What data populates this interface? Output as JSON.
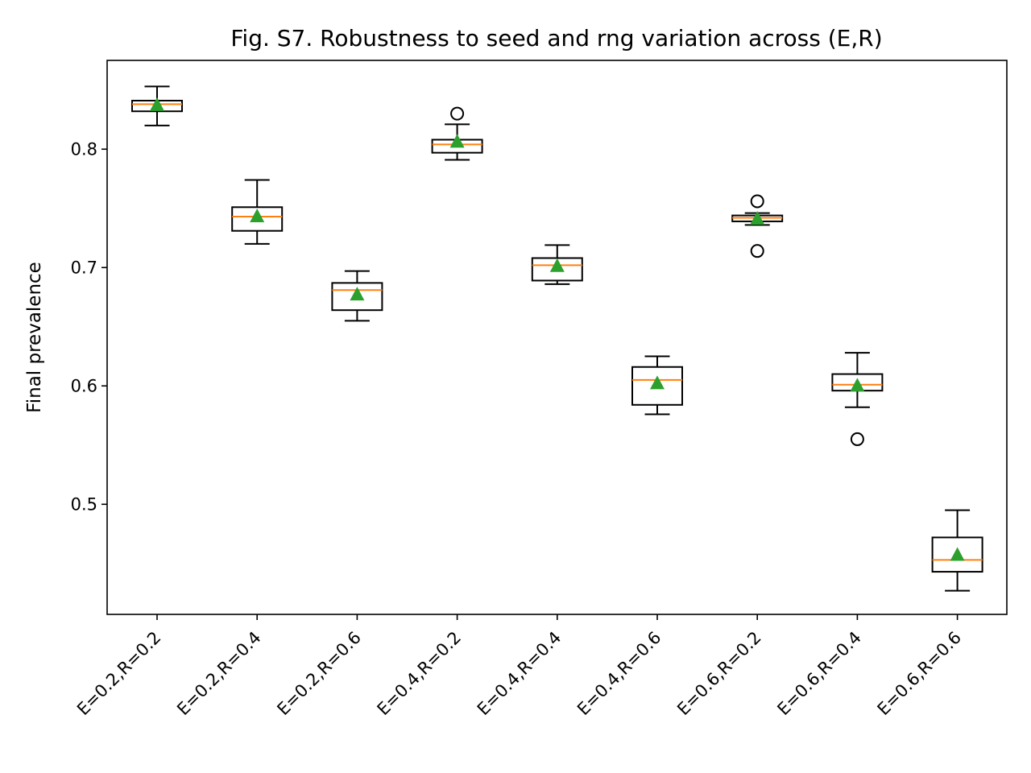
{
  "chart_data": {
    "type": "box",
    "title": "Fig. S7. Robustness to seed and rng variation across (E,R)",
    "xlabel": "",
    "ylabel": "Final prevalence",
    "ylim": [
      0.407,
      0.875
    ],
    "yticks": [
      0.5,
      0.6,
      0.7,
      0.8
    ],
    "ytick_labels": [
      "0.5",
      "0.6",
      "0.7",
      "0.8"
    ],
    "grid": false,
    "colors": {
      "box": "#000000",
      "median": "#ff7f0e",
      "mean": "#2ca02c",
      "outlier": "#000000"
    },
    "categories": [
      "E=0.2,R=0.2",
      "E=0.2,R=0.4",
      "E=0.2,R=0.6",
      "E=0.4,R=0.2",
      "E=0.4,R=0.4",
      "E=0.4,R=0.6",
      "E=0.6,R=0.2",
      "E=0.6,R=0.4",
      "E=0.6,R=0.6"
    ],
    "boxes": [
      {
        "whislo": 0.82,
        "q1": 0.832,
        "med": 0.838,
        "q3": 0.841,
        "whishi": 0.853,
        "mean": 0.837,
        "fliers": []
      },
      {
        "whislo": 0.72,
        "q1": 0.731,
        "med": 0.743,
        "q3": 0.751,
        "whishi": 0.774,
        "mean": 0.743,
        "fliers": []
      },
      {
        "whislo": 0.655,
        "q1": 0.664,
        "med": 0.681,
        "q3": 0.687,
        "whishi": 0.697,
        "mean": 0.677,
        "fliers": []
      },
      {
        "whislo": 0.791,
        "q1": 0.797,
        "med": 0.804,
        "q3": 0.808,
        "whishi": 0.821,
        "mean": 0.806,
        "fliers": [
          0.83
        ]
      },
      {
        "whislo": 0.686,
        "q1": 0.689,
        "med": 0.702,
        "q3": 0.708,
        "whishi": 0.719,
        "mean": 0.701,
        "fliers": []
      },
      {
        "whislo": 0.576,
        "q1": 0.584,
        "med": 0.605,
        "q3": 0.616,
        "whishi": 0.625,
        "mean": 0.602,
        "fliers": []
      },
      {
        "whislo": 0.736,
        "q1": 0.739,
        "med": 0.742,
        "q3": 0.744,
        "whishi": 0.746,
        "mean": 0.741,
        "fliers": [
          0.756,
          0.714
        ]
      },
      {
        "whislo": 0.582,
        "q1": 0.596,
        "med": 0.601,
        "q3": 0.61,
        "whishi": 0.628,
        "mean": 0.6,
        "fliers": [
          0.555
        ]
      },
      {
        "whislo": 0.427,
        "q1": 0.443,
        "med": 0.453,
        "q3": 0.472,
        "whishi": 0.495,
        "mean": 0.457,
        "fliers": []
      }
    ]
  }
}
